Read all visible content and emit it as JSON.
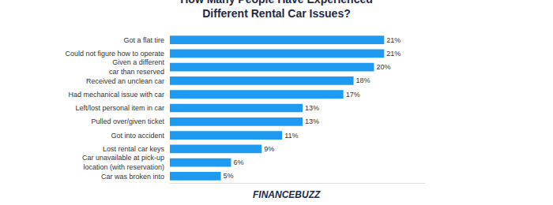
{
  "chart_data": {
    "type": "bar",
    "orientation": "horizontal",
    "title": "How Many People Have Experienced Different Rental Car Issues?",
    "categories": [
      "Got a flat tire",
      "Could not figure how to operate",
      "Given a different car than reserved",
      "Received an unclean car",
      "Had mechanical issue with car",
      "Left/lost personal item in car",
      "Pulled over/given ticket",
      "Got into accident",
      "Lost rental car keys",
      "Car unavailable at pick-up location (with reservation)",
      "Car was broken into"
    ],
    "values": [
      21,
      21,
      20,
      18,
      17,
      13,
      13,
      11,
      9,
      6,
      5
    ],
    "value_labels": [
      "21%",
      "21%",
      "20%",
      "18%",
      "17%",
      "13%",
      "13%",
      "11%",
      "9%",
      "6%",
      "5%"
    ],
    "color": "#1e9af1",
    "xlim": [
      0,
      25
    ],
    "xticks": [],
    "tick_labels": "y",
    "data_labels": true,
    "grid": false,
    "annotations": [
      "FINANCEBUZZ"
    ]
  }
}
